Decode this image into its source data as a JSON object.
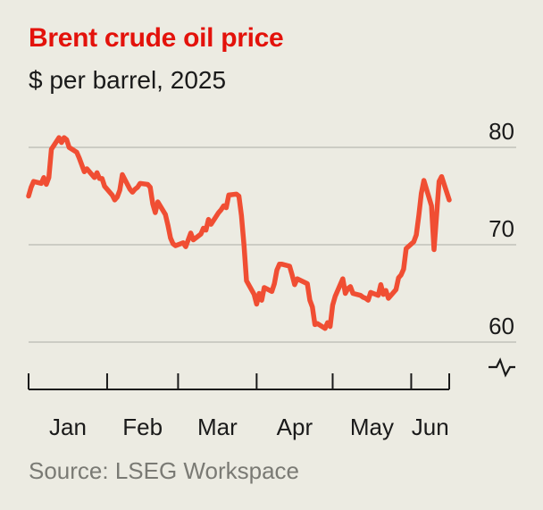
{
  "title": "Brent crude oil price",
  "subtitle": "$ per barrel, 2025",
  "source": "Source: LSEG Workspace",
  "colors": {
    "line": "#f04e33",
    "title": "#e3120b",
    "grid": "#b9b9b2",
    "background": "#ecebe2"
  },
  "chart_data": {
    "type": "line",
    "title": "Brent crude oil price",
    "subtitle": "$ per barrel, 2025",
    "xlabel": "",
    "ylabel": "",
    "ylim": [
      60,
      80
    ],
    "yticks": [
      60,
      70,
      80
    ],
    "broken_axis": true,
    "grid": true,
    "months": [
      "Jan",
      "Feb",
      "Mar",
      "Apr",
      "May",
      "Jun"
    ],
    "x_range": [
      "2025-01-01",
      "2025-06-16"
    ],
    "series": [
      {
        "color": "#f04e33",
        "x": [
          "2025-01-01",
          "2025-01-02",
          "2025-01-03",
          "2025-01-06",
          "2025-01-07",
          "2025-01-08",
          "2025-01-09",
          "2025-01-10",
          "2025-01-13",
          "2025-01-14",
          "2025-01-15",
          "2025-01-16",
          "2025-01-17",
          "2025-01-20",
          "2025-01-21",
          "2025-01-22",
          "2025-01-23",
          "2025-01-24",
          "2025-01-27",
          "2025-01-28",
          "2025-01-29",
          "2025-01-30",
          "2025-01-31",
          "2025-02-03",
          "2025-02-04",
          "2025-02-05",
          "2025-02-06",
          "2025-02-07",
          "2025-02-10",
          "2025-02-11",
          "2025-02-12",
          "2025-02-13",
          "2025-02-14",
          "2025-02-17",
          "2025-02-18",
          "2025-02-19",
          "2025-02-20",
          "2025-02-21",
          "2025-02-24",
          "2025-02-25",
          "2025-02-26",
          "2025-02-27",
          "2025-02-28",
          "2025-03-03",
          "2025-03-04",
          "2025-03-05",
          "2025-03-06",
          "2025-03-07",
          "2025-03-10",
          "2025-03-11",
          "2025-03-12",
          "2025-03-13",
          "2025-03-14",
          "2025-03-17",
          "2025-03-18",
          "2025-03-19",
          "2025-03-20",
          "2025-03-21",
          "2025-03-24",
          "2025-03-25",
          "2025-03-26",
          "2025-03-27",
          "2025-03-28",
          "2025-03-31",
          "2025-04-01",
          "2025-04-02",
          "2025-04-03",
          "2025-04-04",
          "2025-04-07",
          "2025-04-08",
          "2025-04-09",
          "2025-04-10",
          "2025-04-11",
          "2025-04-14",
          "2025-04-15",
          "2025-04-16",
          "2025-04-17",
          "2025-04-21",
          "2025-04-22",
          "2025-04-23",
          "2025-04-24",
          "2025-04-25",
          "2025-04-28",
          "2025-04-29",
          "2025-04-30",
          "2025-05-01",
          "2025-05-02",
          "2025-05-05",
          "2025-05-06",
          "2025-05-07",
          "2025-05-08",
          "2025-05-09",
          "2025-05-12",
          "2025-05-13",
          "2025-05-14",
          "2025-05-15",
          "2025-05-16",
          "2025-05-19",
          "2025-05-20",
          "2025-05-21",
          "2025-05-22",
          "2025-05-23",
          "2025-05-26",
          "2025-05-27",
          "2025-05-28",
          "2025-05-29",
          "2025-05-30",
          "2025-06-02",
          "2025-06-03",
          "2025-06-04",
          "2025-06-05",
          "2025-06-06",
          "2025-06-09",
          "2025-06-10",
          "2025-06-11",
          "2025-06-12",
          "2025-06-13",
          "2025-06-16"
        ],
        "y": [
          75.0,
          75.9,
          76.5,
          76.3,
          76.9,
          76.2,
          76.9,
          79.8,
          81.0,
          80.5,
          81.0,
          80.8,
          80.0,
          79.5,
          78.9,
          78.2,
          77.5,
          77.8,
          76.9,
          77.4,
          76.8,
          76.8,
          76.0,
          75.1,
          74.6,
          74.9,
          75.6,
          77.2,
          75.7,
          75.4,
          75.7,
          75.9,
          76.3,
          76.2,
          75.9,
          74.2,
          73.3,
          74.4,
          73.1,
          72.0,
          70.7,
          70.1,
          69.9,
          70.2,
          69.8,
          70.5,
          71.2,
          70.5,
          71.1,
          71.7,
          71.5,
          72.6,
          72.1,
          73.3,
          73.6,
          74.0,
          73.8,
          75.1,
          75.2,
          75.0,
          73.0,
          70.0,
          66.3,
          64.9,
          63.9,
          65.0,
          64.3,
          65.6,
          65.2,
          66.0,
          67.4,
          68.0,
          68.0,
          67.8,
          66.9,
          65.9,
          66.5,
          66.0,
          64.3,
          63.6,
          61.8,
          61.9,
          61.4,
          62.0,
          61.6,
          63.8,
          64.7,
          66.5,
          65.0,
          65.5,
          65.7,
          65.0,
          64.8,
          64.6,
          64.5,
          64.3,
          65.1,
          64.8,
          65.9,
          64.9,
          65.3,
          64.5,
          65.4,
          66.6,
          66.9,
          67.5,
          69.6,
          70.3,
          71.0,
          73.0,
          75.3,
          76.6,
          74.0,
          69.5,
          73.0,
          76.5,
          77.0,
          74.6
        ]
      }
    ]
  }
}
